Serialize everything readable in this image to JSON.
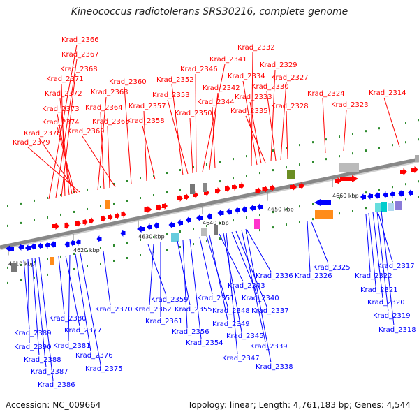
{
  "title": "Kineococcus radiotolerans SRS30216, complete genome",
  "footer": {
    "accession": "Accession: NC_009664",
    "summary": "Topology: linear; Length: 4,761,183 bp; Genes: 4,544"
  },
  "colors": {
    "forward": "#ff0000",
    "reverse": "#0000ff",
    "axis": "#888888",
    "tick": "#2e8b2e"
  },
  "scale_ticks": [
    "4610 kbp",
    "4620 kbp",
    "4630 kbp",
    "4640 kbp",
    "4650 kbp",
    "4660 kbp"
  ],
  "forward_labels": [
    "Krad_2366",
    "Krad_2367",
    "Krad_2368",
    "Krad_2371",
    "Krad_2372",
    "Krad_2373",
    "Krad_2374",
    "Krad_2378",
    "Krad_2379",
    "Krad_2363",
    "Krad_2364",
    "Krad_2365",
    "Krad_2369",
    "Krad_2360",
    "Krad_2357",
    "Krad_2358",
    "Krad_2352",
    "Krad_2353",
    "Krad_2350",
    "Krad_2346",
    "Krad_2341",
    "Krad_2342",
    "Krad_2344",
    "Krad_2332",
    "Krad_2334",
    "Krad_2333",
    "Krad_2335",
    "Krad_2329",
    "Krad_2330",
    "Krad_2327",
    "Krad_2328",
    "Krad_2324",
    "Krad_2323",
    "Krad_2314"
  ],
  "reverse_labels": [
    "Krad_2389",
    "Krad_2390",
    "Krad_2388",
    "Krad_2387",
    "Krad_2386",
    "Krad_2380",
    "Krad_2377",
    "Krad_2381",
    "Krad_2376",
    "Krad_2375",
    "Krad_2370",
    "Krad_2359",
    "Krad_2362",
    "Krad_2361",
    "Krad_2355",
    "Krad_2356",
    "Krad_2354",
    "Krad_2351",
    "Krad_2348",
    "Krad_2349",
    "Krad_2343",
    "Krad_2345",
    "Krad_2347",
    "Krad_2340",
    "Krad_2337",
    "Krad_2336",
    "Krad_2339",
    "Krad_2338",
    "Krad_2325",
    "Krad_2326",
    "Krad_2322",
    "Krad_2317",
    "Krad_2321",
    "Krad_2320",
    "Krad_2319",
    "Krad_2318"
  ]
}
